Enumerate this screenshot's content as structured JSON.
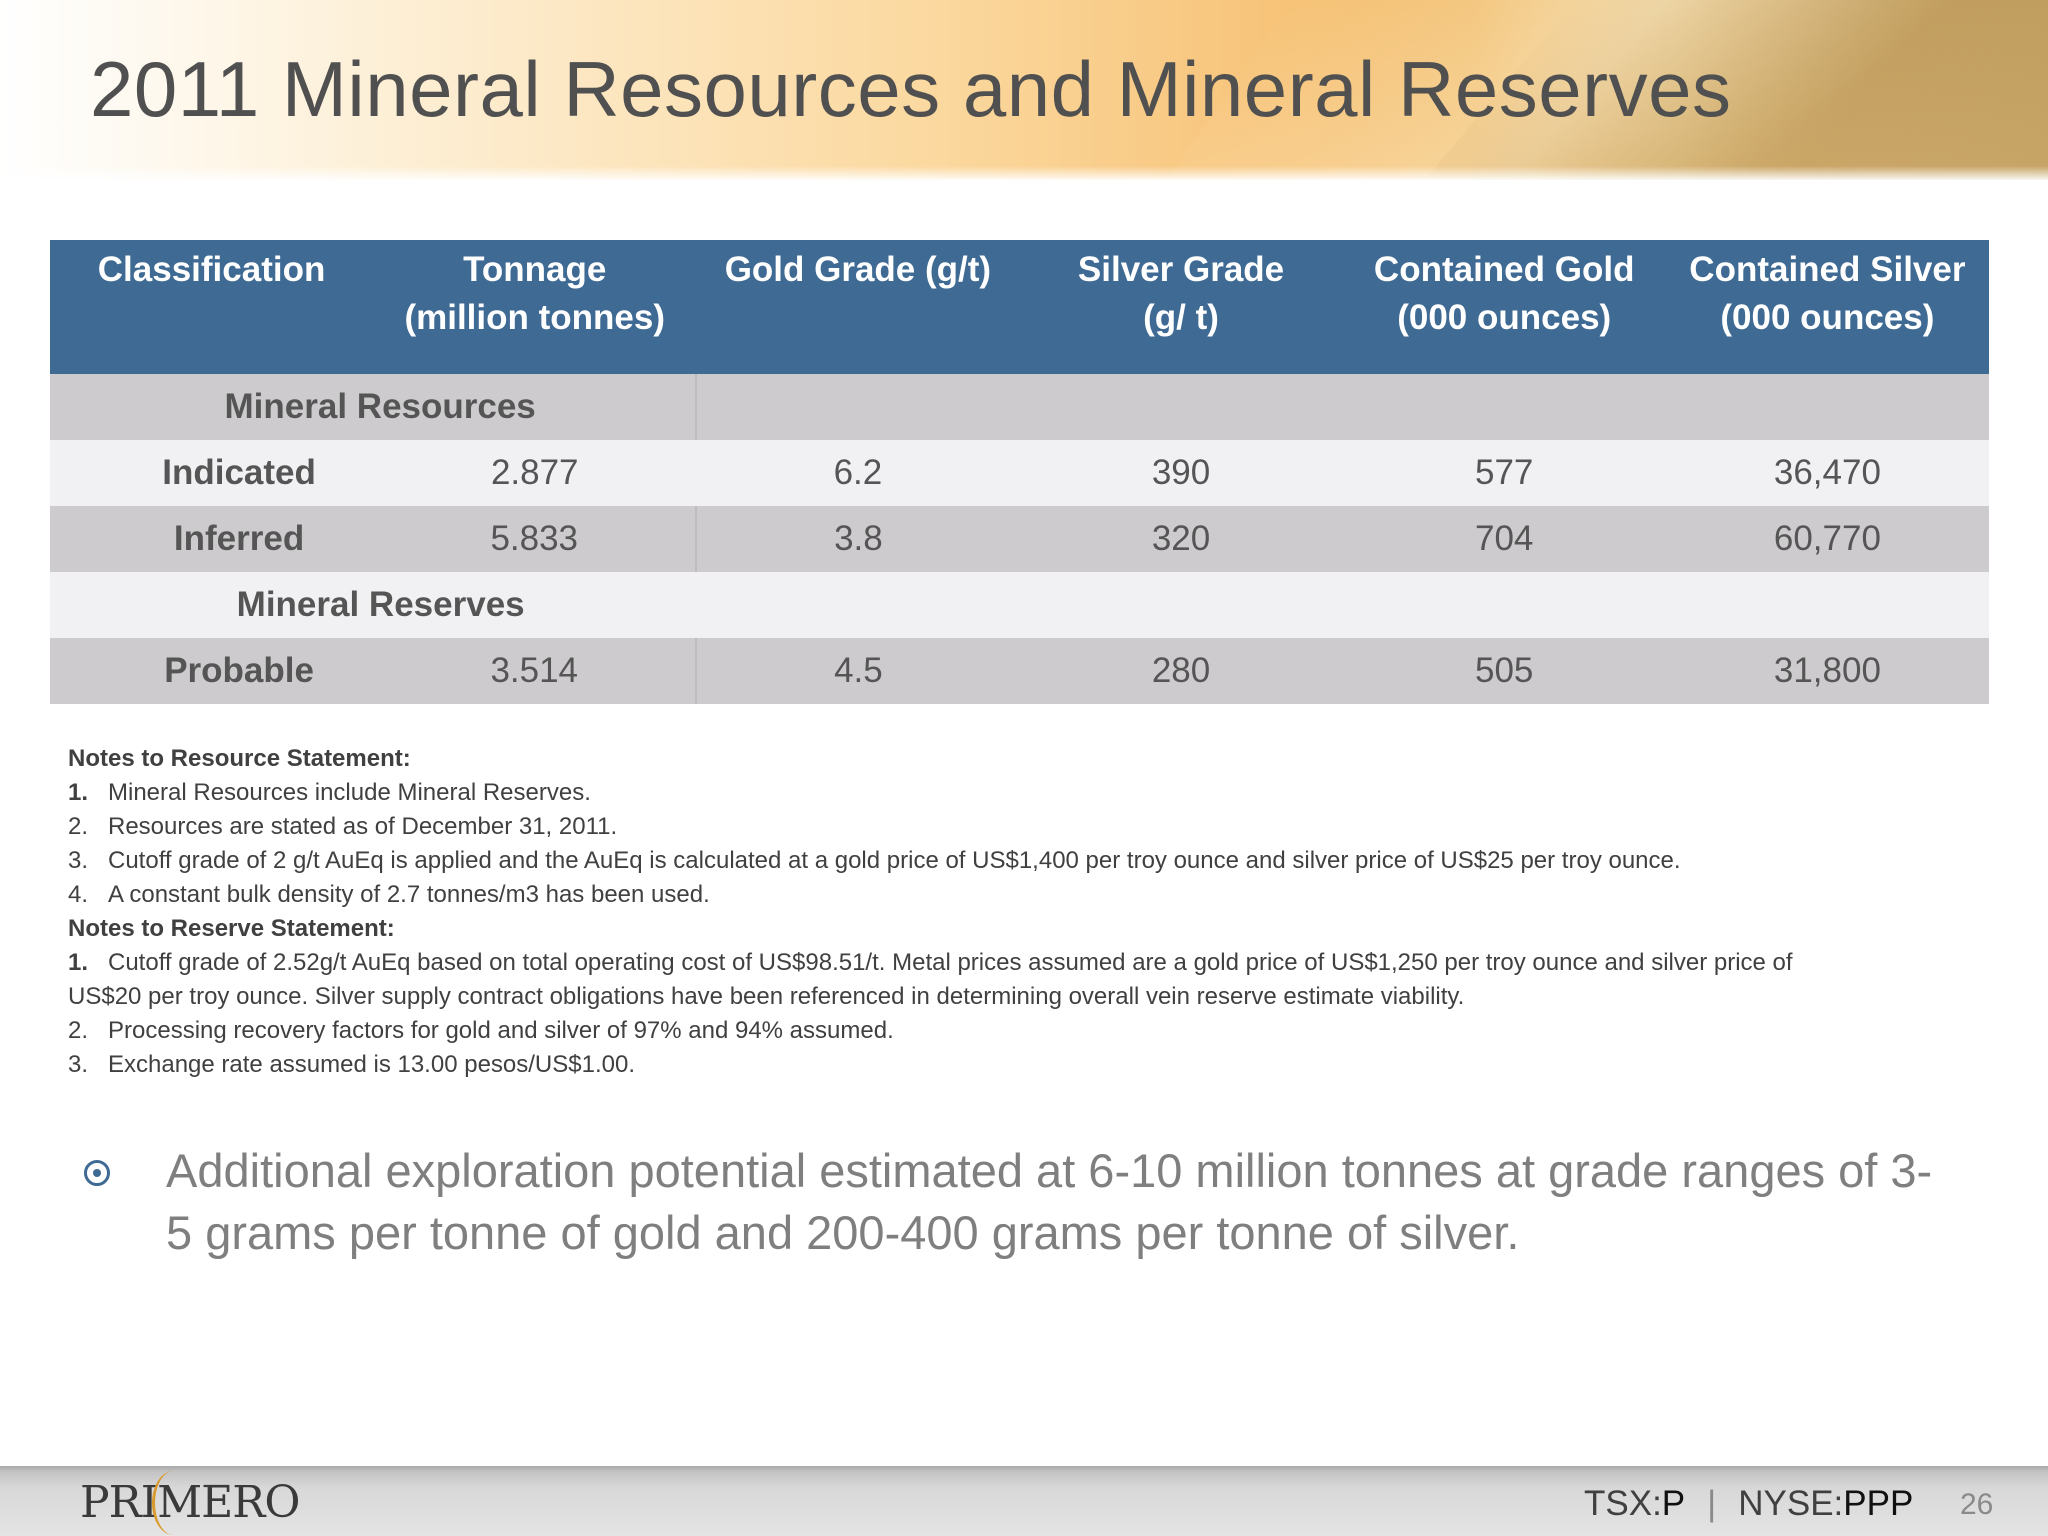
{
  "slide": {
    "title": "2011 Mineral Resources and Mineral Reserves",
    "page_number": "26"
  },
  "table": {
    "headers": [
      {
        "line1": "Classification",
        "line2": ""
      },
      {
        "line1": "Tonnage",
        "line2": "(million tonnes)"
      },
      {
        "line1": "Gold Grade (g/t)",
        "line2": ""
      },
      {
        "line1": "Silver Grade",
        "line2": "(g/ t)"
      },
      {
        "line1": "Contained Gold",
        "line2": "(000 ounces)"
      },
      {
        "line1": "Contained Silver",
        "line2": "(000 ounces)"
      }
    ],
    "sections": [
      {
        "label": "Mineral Resources",
        "rows": [
          {
            "label": "Indicated",
            "tonnage": "2.877",
            "gold_grade": "6.2",
            "silver_grade": "390",
            "contained_gold": "577",
            "contained_silver": "36,470"
          },
          {
            "label": "Inferred",
            "tonnage": "5.833",
            "gold_grade": "3.8",
            "silver_grade": "320",
            "contained_gold": "704",
            "contained_silver": "60,770"
          }
        ]
      },
      {
        "label": "Mineral Reserves",
        "rows": [
          {
            "label": "Probable",
            "tonnage": "3.514",
            "gold_grade": "4.5",
            "silver_grade": "280",
            "contained_gold": "505",
            "contained_silver": "31,800"
          }
        ]
      }
    ]
  },
  "notes": {
    "resource_heading": "Notes to Resource Statement:",
    "resource_items": [
      {
        "num": "1.",
        "text": "Mineral Resources include Mineral Reserves."
      },
      {
        "num": "2.",
        "text": "Resources are stated as of December 31, 2011."
      },
      {
        "num": "3.",
        "text": "Cutoff grade of 2 g/t AuEq is applied and the AuEq is calculated at a gold price of US$1,400 per troy ounce and silver price of US$25 per troy ounce."
      },
      {
        "num": "4.",
        "text": "A constant bulk density of 2.7 tonnes/m3 has been used."
      }
    ],
    "reserve_heading": "Notes to Reserve Statement:",
    "reserve_items": [
      {
        "num": "1.",
        "text": "Cutoff grade of 2.52g/t AuEq based on total operating cost of US$98.51/t.  Metal prices assumed are a gold price of US$1,250 per troy ounce and silver price of",
        "continuation": "US$20 per troy ounce. Silver supply contract obligations have been referenced in determining overall vein reserve estimate viability."
      },
      {
        "num": "2.",
        "text": "Processing recovery factors for gold and silver of 97% and 94% assumed."
      },
      {
        "num": "3.",
        "text": "Exchange rate assumed is 13.00 pesos/US$1.00."
      }
    ]
  },
  "bullet": {
    "icon": "circle-dot-bullet-icon",
    "line1": "Additional exploration potential estimated at 6-10 million tonnes at grade ranges of 3-",
    "line2": "5 grams per tonne of gold and 200-400 grams per tonne of silver."
  },
  "footer": {
    "logo_text": "PRIMERO",
    "tsx_label": "TSX:",
    "tsx_symbol": "P",
    "separator": "|",
    "nyse_label": "NYSE:",
    "nyse_symbol": "PPP"
  },
  "colors": {
    "header_blue": "#3e6a94",
    "row_dark": "#cdcbcd",
    "row_light": "#f1f0f2",
    "title_gray": "#505050",
    "logo_accent": "#d99a2b"
  }
}
